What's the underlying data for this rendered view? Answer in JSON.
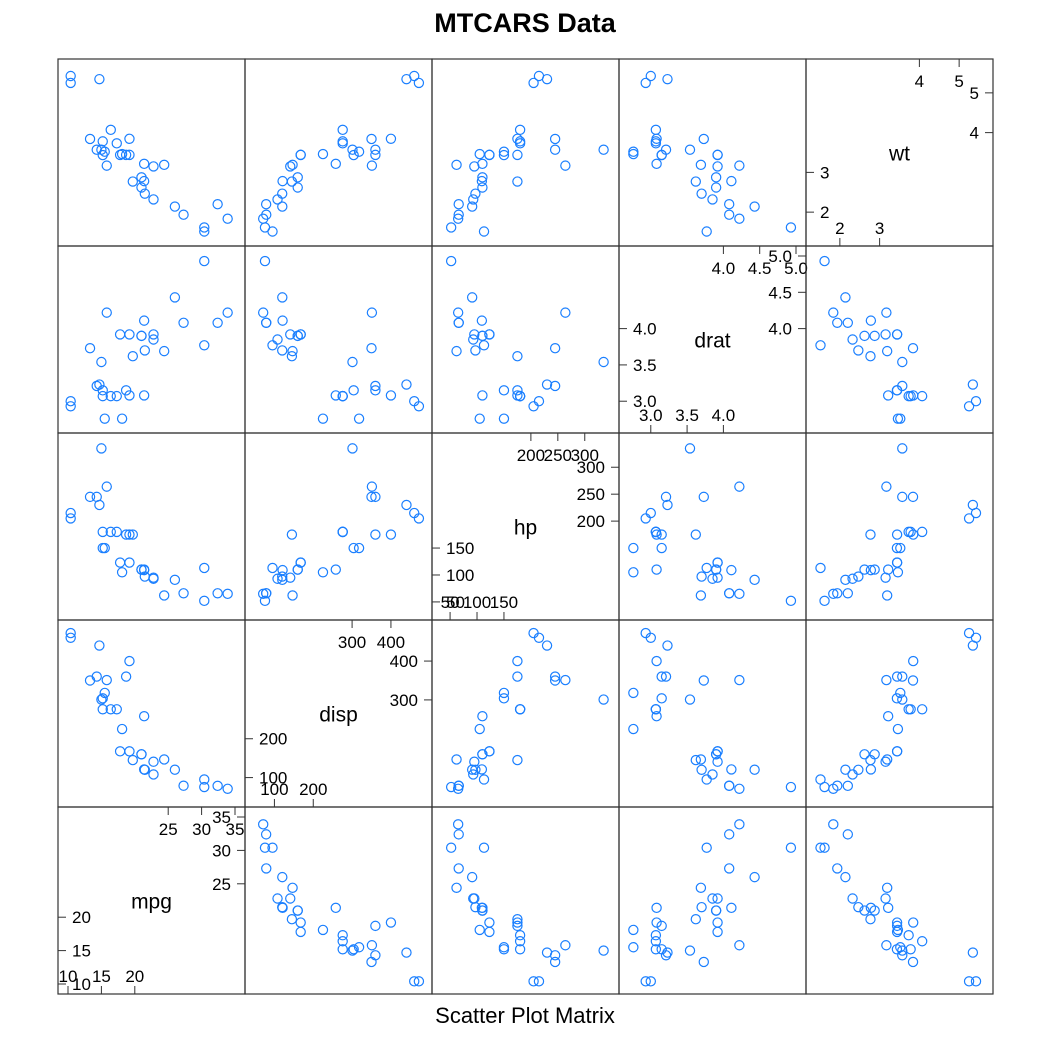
{
  "chart_data": {
    "type": "scatter-matrix",
    "title": "MTCARS Data",
    "xlabel": "Scatter Plot Matrix",
    "point_color": "#1a7fff",
    "variables": [
      {
        "key": "mpg",
        "label": "mpg",
        "range": [
          10,
          35
        ],
        "inner_ticks": [
          "10",
          "15",
          "20"
        ],
        "outer_ticks": [
          "25",
          "30",
          "35"
        ]
      },
      {
        "key": "disp",
        "label": "disp",
        "range": [
          50,
          480
        ],
        "inner_ticks": [
          "100",
          "200"
        ],
        "outer_ticks": [
          "300",
          "400"
        ]
      },
      {
        "key": "hp",
        "label": "hp",
        "range": [
          35,
          345
        ],
        "inner_ticks": [
          "50",
          "100",
          "150"
        ],
        "outer_ticks": [
          "200",
          "250",
          "300"
        ]
      },
      {
        "key": "drat",
        "label": "drat",
        "range": [
          2.7,
          5.0
        ],
        "inner_ticks": [
          "3.0",
          "3.5",
          "4.0"
        ],
        "outer_ticks": [
          "4.0",
          "4.5",
          "5.0"
        ]
      },
      {
        "key": "wt",
        "label": "wt",
        "range": [
          1.4,
          5.6
        ],
        "inner_ticks": [
          "2",
          "3"
        ],
        "outer_ticks": [
          "4",
          "5"
        ]
      }
    ],
    "series": [
      {
        "name": "",
        "points": [
          {
            "mpg": 21.0,
            "disp": 160.0,
            "hp": 110,
            "drat": 3.9,
            "wt": 2.62
          },
          {
            "mpg": 21.0,
            "disp": 160.0,
            "hp": 110,
            "drat": 3.9,
            "wt": 2.875
          },
          {
            "mpg": 22.8,
            "disp": 108.0,
            "hp": 93,
            "drat": 3.85,
            "wt": 2.32
          },
          {
            "mpg": 21.4,
            "disp": 258.0,
            "hp": 110,
            "drat": 3.08,
            "wt": 3.215
          },
          {
            "mpg": 18.7,
            "disp": 360.0,
            "hp": 175,
            "drat": 3.15,
            "wt": 3.44
          },
          {
            "mpg": 18.1,
            "disp": 225.0,
            "hp": 105,
            "drat": 2.76,
            "wt": 3.46
          },
          {
            "mpg": 14.3,
            "disp": 360.0,
            "hp": 245,
            "drat": 3.21,
            "wt": 3.57
          },
          {
            "mpg": 24.4,
            "disp": 146.7,
            "hp": 62,
            "drat": 3.69,
            "wt": 3.19
          },
          {
            "mpg": 22.8,
            "disp": 140.8,
            "hp": 95,
            "drat": 3.92,
            "wt": 3.15
          },
          {
            "mpg": 19.2,
            "disp": 167.6,
            "hp": 123,
            "drat": 3.92,
            "wt": 3.44
          },
          {
            "mpg": 17.8,
            "disp": 167.6,
            "hp": 123,
            "drat": 3.92,
            "wt": 3.44
          },
          {
            "mpg": 16.4,
            "disp": 275.8,
            "hp": 180,
            "drat": 3.07,
            "wt": 4.07
          },
          {
            "mpg": 17.3,
            "disp": 275.8,
            "hp": 180,
            "drat": 3.07,
            "wt": 3.73
          },
          {
            "mpg": 15.2,
            "disp": 275.8,
            "hp": 180,
            "drat": 3.07,
            "wt": 3.78
          },
          {
            "mpg": 10.4,
            "disp": 472.0,
            "hp": 205,
            "drat": 2.93,
            "wt": 5.25
          },
          {
            "mpg": 10.4,
            "disp": 460.0,
            "hp": 215,
            "drat": 3.0,
            "wt": 5.424
          },
          {
            "mpg": 14.7,
            "disp": 440.0,
            "hp": 230,
            "drat": 3.23,
            "wt": 5.345
          },
          {
            "mpg": 32.4,
            "disp": 78.7,
            "hp": 66,
            "drat": 4.08,
            "wt": 2.2
          },
          {
            "mpg": 30.4,
            "disp": 75.7,
            "hp": 52,
            "drat": 4.93,
            "wt": 1.615
          },
          {
            "mpg": 33.9,
            "disp": 71.1,
            "hp": 65,
            "drat": 4.22,
            "wt": 1.835
          },
          {
            "mpg": 21.5,
            "disp": 120.1,
            "hp": 97,
            "drat": 3.7,
            "wt": 2.465
          },
          {
            "mpg": 15.5,
            "disp": 318.0,
            "hp": 150,
            "drat": 2.76,
            "wt": 3.52
          },
          {
            "mpg": 15.2,
            "disp": 304.0,
            "hp": 150,
            "drat": 3.15,
            "wt": 3.435
          },
          {
            "mpg": 13.3,
            "disp": 350.0,
            "hp": 245,
            "drat": 3.73,
            "wt": 3.84
          },
          {
            "mpg": 19.2,
            "disp": 400.0,
            "hp": 175,
            "drat": 3.08,
            "wt": 3.845
          },
          {
            "mpg": 27.3,
            "disp": 79.0,
            "hp": 66,
            "drat": 4.08,
            "wt": 1.935
          },
          {
            "mpg": 26.0,
            "disp": 120.3,
            "hp": 91,
            "drat": 4.43,
            "wt": 2.14
          },
          {
            "mpg": 30.4,
            "disp": 95.1,
            "hp": 113,
            "drat": 3.77,
            "wt": 1.513
          },
          {
            "mpg": 15.8,
            "disp": 351.0,
            "hp": 264,
            "drat": 4.22,
            "wt": 3.17
          },
          {
            "mpg": 19.7,
            "disp": 145.0,
            "hp": 175,
            "drat": 3.62,
            "wt": 2.77
          },
          {
            "mpg": 15.0,
            "disp": 301.0,
            "hp": 335,
            "drat": 3.54,
            "wt": 3.57
          },
          {
            "mpg": 21.4,
            "disp": 121.0,
            "hp": 109,
            "drat": 4.11,
            "wt": 2.78
          }
        ]
      }
    ]
  }
}
